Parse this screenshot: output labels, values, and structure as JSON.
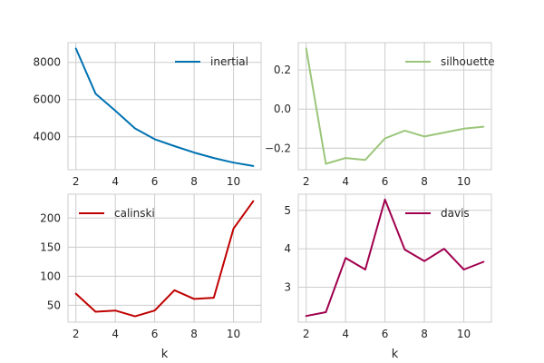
{
  "chart_data": [
    {
      "type": "line",
      "x": [
        2,
        3,
        4,
        5,
        6,
        7,
        8,
        9,
        10,
        11
      ],
      "series": [
        {
          "name": "inertial",
          "values": [
            8750,
            6320,
            5400,
            4450,
            3870,
            3500,
            3150,
            2860,
            2610,
            2430
          ]
        }
      ],
      "xlim": [
        1.6,
        11.4
      ],
      "ylim": [
        2230,
        9060
      ],
      "xticks": [
        2,
        4,
        6,
        8,
        10
      ],
      "yticks": [
        4000,
        6000,
        8000
      ],
      "xlabel": "",
      "legend": "top-right",
      "color": "#0072B2"
    },
    {
      "type": "line",
      "x": [
        2,
        3,
        4,
        5,
        6,
        7,
        8,
        9,
        10,
        11
      ],
      "series": [
        {
          "name": "silhouette",
          "values": [
            0.31,
            -0.28,
            -0.25,
            -0.26,
            -0.15,
            -0.11,
            -0.14,
            -0.12,
            -0.1,
            -0.09
          ]
        }
      ],
      "xlim": [
        1.6,
        11.4
      ],
      "ylim": [
        -0.31,
        0.34
      ],
      "xticks": [
        2,
        4,
        6,
        8,
        10
      ],
      "yticks": [
        -0.2,
        0.0,
        0.2
      ],
      "ytick_labels": [
        "−0.2",
        "0.0",
        "0.2"
      ],
      "xlabel": "",
      "legend": "top-right",
      "color": "#9BC67A"
    },
    {
      "type": "line",
      "x": [
        2,
        3,
        4,
        5,
        6,
        7,
        8,
        9,
        10,
        11
      ],
      "series": [
        {
          "name": "calinski",
          "values": [
            70,
            39,
            41,
            31,
            41,
            76,
            61,
            63,
            182,
            229
          ]
        }
      ],
      "xlim": [
        1.6,
        11.4
      ],
      "ylim": [
        21,
        241
      ],
      "xticks": [
        2,
        4,
        6,
        8,
        10
      ],
      "yticks": [
        50,
        100,
        150,
        200
      ],
      "xlabel": "k",
      "legend": "top-left",
      "color": "#C00000"
    },
    {
      "type": "line",
      "x": [
        2,
        3,
        4,
        5,
        6,
        7,
        8,
        9,
        10,
        11
      ],
      "series": [
        {
          "name": "davis",
          "values": [
            2.25,
            2.35,
            3.76,
            3.46,
            5.28,
            3.98,
            3.68,
            4.0,
            3.46,
            3.66
          ]
        }
      ],
      "xlim": [
        1.6,
        11.4
      ],
      "ylim": [
        2.09,
        5.42
      ],
      "xticks": [
        2,
        4,
        6,
        8,
        10
      ],
      "yticks": [
        3,
        4,
        5
      ],
      "xlabel": "k",
      "legend": "top-right",
      "color": "#A0004E"
    }
  ]
}
